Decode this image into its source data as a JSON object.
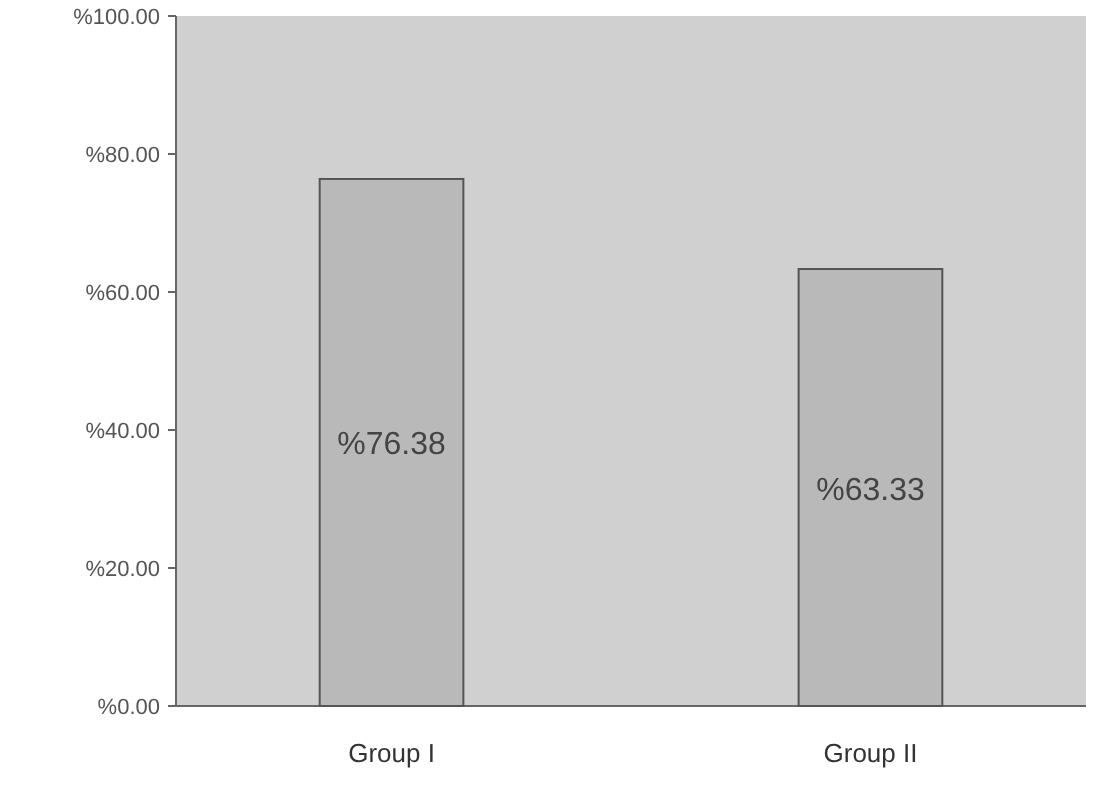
{
  "chart_data": {
    "type": "bar",
    "categories": [
      "Group I",
      "Group II"
    ],
    "values": [
      76.38,
      63.33
    ],
    "color": "#b9b9b9",
    "value_labels": [
      "%76.38",
      "%63.33"
    ],
    "ylim": [
      0,
      100
    ],
    "yticks": [
      {
        "value": 0,
        "label": "%0.00"
      },
      {
        "value": 20,
        "label": "%20.00"
      },
      {
        "value": 40,
        "label": "%40.00"
      },
      {
        "value": 60,
        "label": "%60.00"
      },
      {
        "value": 80,
        "label": "%80.00"
      },
      {
        "value": 100,
        "label": "%100.00"
      }
    ]
  }
}
